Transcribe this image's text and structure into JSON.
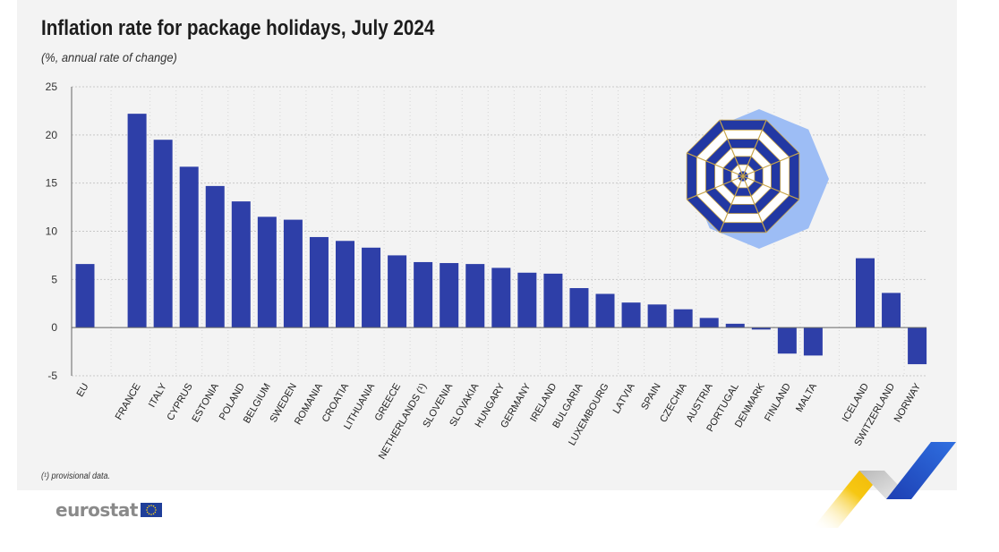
{
  "header": {
    "title": "Inflation rate for package holidays, July 2024",
    "subtitle": "(%, annual rate of change)"
  },
  "footnote": "(¹) provisional data.",
  "brand": {
    "logo_text": "eurostat"
  },
  "colors": {
    "bar": "#2e3fa8",
    "panel": "#f3f3f3",
    "grid": "#c8c8c8",
    "axis": "#666666"
  },
  "chart_data": {
    "type": "bar",
    "title": "Inflation rate for package holidays, July 2024",
    "subtitle": "(%, annual rate of change)",
    "ylim": [
      -5,
      25
    ],
    "yticks": [
      25,
      20,
      15,
      10,
      5,
      0,
      -5
    ],
    "grid": true,
    "groups": [
      {
        "categories": [
          "EU"
        ],
        "values": [
          6.6
        ]
      },
      {
        "categories": [
          "FRANCE",
          "ITALY",
          "CYPRUS",
          "ESTONIA",
          "POLAND",
          "BELGIUM",
          "SWEDEN",
          "ROMANIA",
          "CROATIA",
          "LITHUANIA",
          "GREECE",
          "NETHERLANDS (¹)",
          "SLOVENIA",
          "SLOVAKIA",
          "HUNGARY",
          "GERMANY",
          "IRELAND",
          "BULGARIA",
          "LUXEMBOURG",
          "LATVIA",
          "SPAIN",
          "CZECHIA",
          "AUSTRIA",
          "PORTUGAL",
          "DENMARK",
          "FINLAND",
          "MALTA"
        ],
        "values": [
          22.2,
          19.5,
          16.7,
          14.7,
          13.1,
          11.5,
          11.2,
          9.4,
          9.0,
          8.3,
          7.5,
          6.8,
          6.7,
          6.6,
          6.2,
          5.7,
          5.6,
          4.1,
          3.5,
          2.6,
          2.4,
          1.9,
          1.0,
          0.4,
          -0.2,
          -2.7,
          -2.9
        ]
      },
      {
        "categories": [
          "ICELAND",
          "SWITZERLAND",
          "NORWAY"
        ],
        "values": [
          7.2,
          3.6,
          -3.8
        ]
      }
    ]
  }
}
